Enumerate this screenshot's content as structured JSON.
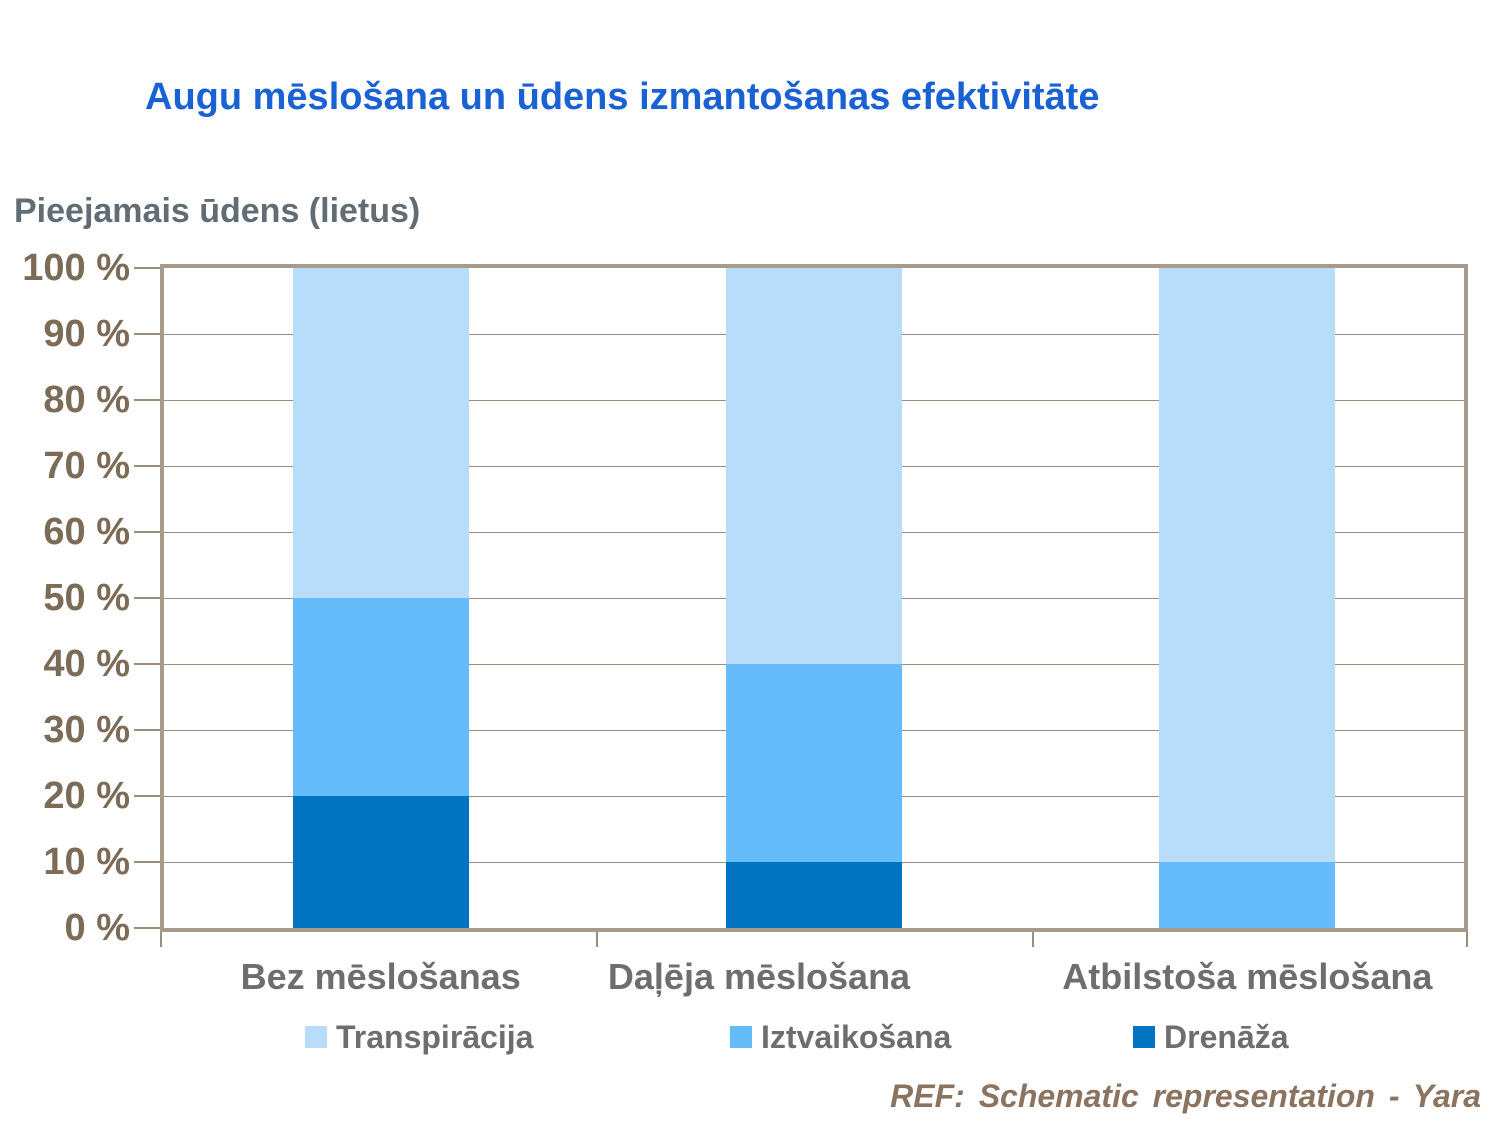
{
  "chart_data": {
    "type": "bar",
    "stacked": true,
    "title": "Augu mēslošana un ūdens izmantošanas efektivitāte",
    "ylabel": "Pieejamais ūdens (lietus)",
    "xlabel": "",
    "ylim": [
      0,
      100
    ],
    "grid": true,
    "legend_position": "bottom",
    "categories": [
      "Bez mēslošanas",
      "Daļēja mēslošana",
      "Atbilstoša mēslošana"
    ],
    "series": [
      {
        "name": "Drenāža",
        "color": "#0073c2",
        "values": [
          20,
          10,
          0
        ]
      },
      {
        "name": "Iztvaikošana",
        "color": "#66bcfa",
        "values": [
          30,
          30,
          10
        ]
      },
      {
        "name": "Transpirācija",
        "color": "#b7ddfb",
        "values": [
          50,
          60,
          90
        ]
      }
    ],
    "legend_order": [
      "Transpirācija",
      "Iztvaikošana",
      "Drenāža"
    ],
    "y_ticks": [
      "0 %",
      "10 %",
      "20 %",
      "30 %",
      "40 %",
      "50 %",
      "60 %",
      "70 %",
      "80 %",
      "90 %",
      "100 %"
    ]
  },
  "footer": {
    "text": "REF: Schematic representation - Yara"
  },
  "colors": {
    "title_text": "#1a62d4",
    "axis_label_text": "#626c74",
    "tick_label_text": "#7c6b56",
    "grid_line": "#9c8e7f",
    "plot_border": "#a89a8a",
    "category_label_text": "#6e6e6e",
    "legend_text": "#6e6e6e",
    "footer_text": "#8a7460"
  }
}
